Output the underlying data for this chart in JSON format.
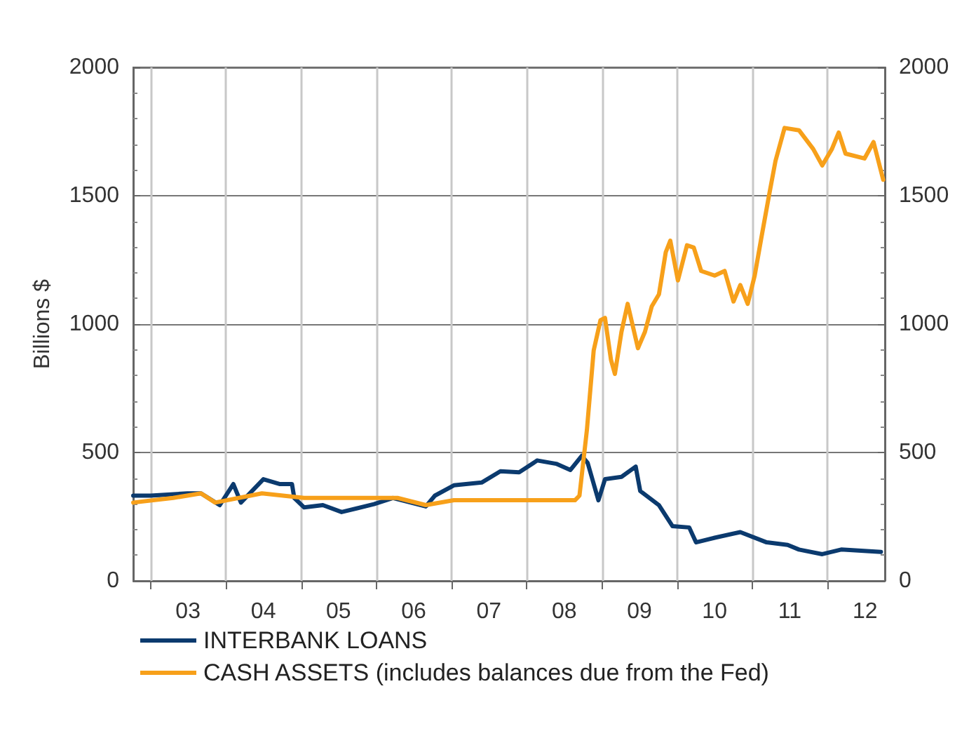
{
  "chart_data": {
    "type": "line",
    "ylabel": "Billions $",
    "xlim": [
      "2002-10-08",
      "2012-10-05"
    ],
    "xticks": [
      {
        "value": "2003",
        "label": null
      },
      {
        "value": "2003-07",
        "label": "03"
      },
      {
        "value": "2004",
        "label": null
      },
      {
        "value": "2004-07",
        "label": "04"
      },
      {
        "value": "2005",
        "label": null
      },
      {
        "value": "2005-07",
        "label": "05"
      },
      {
        "value": "2006",
        "label": null
      },
      {
        "value": "2006-07",
        "label": "06"
      },
      {
        "value": "2007",
        "label": null
      },
      {
        "value": "2007-07",
        "label": "07"
      },
      {
        "value": "2008",
        "label": null
      },
      {
        "value": "2008-07",
        "label": "08"
      },
      {
        "value": "2009",
        "label": null
      },
      {
        "value": "2009-07",
        "label": "09"
      },
      {
        "value": "2010",
        "label": null
      },
      {
        "value": "2010-07",
        "label": "10"
      },
      {
        "value": "2011",
        "label": null
      },
      {
        "value": "2011-07",
        "label": "11"
      },
      {
        "value": "2012",
        "label": null
      },
      {
        "value": "2012-07",
        "label": "12"
      }
    ],
    "ylim": [
      0,
      2000
    ],
    "yticks": [
      0,
      500,
      1000,
      1500,
      2000
    ],
    "y2lim": [
      0,
      2000
    ],
    "y2ticks": [
      0,
      500,
      1000,
      1500,
      2000
    ],
    "grid": true,
    "legend": "bottom",
    "marker": "none",
    "line_style": "solid",
    "series": [
      {
        "name": "INTERBANK LOANS",
        "color": "#0b3a6e",
        "x": [
          "2002-10-08",
          "2003-01-01",
          "2003-06-28",
          "2003-09-02",
          "2003-12-02",
          "2004-02-06",
          "2004-03-14",
          "2004-07-01",
          "2004-09-20",
          "2004-11-17",
          "2004-11-28",
          "2005-01-15",
          "2005-04-16",
          "2005-07-16",
          "2005-12-20",
          "2006-03-22",
          "2006-08-29",
          "2006-10-12",
          "2007-01-12",
          "2007-05-27",
          "2007-08-26",
          "2007-11-25",
          "2008-02-21",
          "2008-05-23",
          "2008-07-31",
          "2008-09-24",
          "2008-10-23",
          "2008-12-14",
          "2009-01-15",
          "2009-04-05",
          "2009-06-13",
          "2009-07-05",
          "2009-10-04",
          "2009-12-09",
          "2010-02-28",
          "2010-04-02",
          "2010-07-02",
          "2010-11-03",
          "2011-03-11",
          "2011-06-21",
          "2011-08-15",
          "2011-12-06",
          "2012-03-07",
          "2012-09-16"
        ],
        "values": [
          332,
          332,
          341,
          341,
          295,
          377,
          305,
          396,
          377,
          377,
          323,
          286,
          295,
          268,
          299,
          323,
          290,
          332,
          372,
          383,
          427,
          423,
          469,
          456,
          432,
          487,
          459,
          314,
          396,
          405,
          445,
          350,
          295,
          213,
          208,
          150,
          168,
          190,
          150,
          140,
          122,
          104,
          122,
          113
        ]
      },
      {
        "name": "CASH ASSETS (includes balances due from the Fed)",
        "color": "#f7a01a",
        "x": [
          "2002-10-08",
          "2003-04-20",
          "2003-09-02",
          "2003-11-10",
          "2004-06-24",
          "2005-01-15",
          "2005-08-29",
          "2006-04-13",
          "2006-08-29",
          "2007-01-12",
          "2007-11-25",
          "2008-08-22",
          "2008-09-13",
          "2008-10-19",
          "2008-11-21",
          "2008-12-24",
          "2009-01-15",
          "2009-02-13",
          "2009-03-04",
          "2009-04-05",
          "2009-05-05",
          "2009-06-24",
          "2009-07-28",
          "2009-08-30",
          "2009-10-04",
          "2009-11-06",
          "2009-11-28",
          "2010-01-04",
          "2010-02-17",
          "2010-03-22",
          "2010-04-27",
          "2010-07-02",
          "2010-08-19",
          "2010-10-01",
          "2010-11-03",
          "2010-12-09",
          "2011-01-12",
          "2011-02-13",
          "2011-03-22",
          "2011-04-23",
          "2011-06-06",
          "2011-08-15",
          "2011-10-23",
          "2011-12-06",
          "2012-01-22",
          "2012-02-24",
          "2012-03-28",
          "2012-06-28",
          "2012-08-11",
          "2012-09-27"
        ],
        "values": [
          305,
          323,
          341,
          305,
          341,
          323,
          323,
          323,
          295,
          314,
          314,
          314,
          332,
          587,
          897,
          1015,
          1024,
          861,
          806,
          970,
          1079,
          906,
          970,
          1069,
          1116,
          1280,
          1325,
          1170,
          1307,
          1298,
          1207,
          1189,
          1207,
          1088,
          1152,
          1079,
          1189,
          1335,
          1499,
          1636,
          1764,
          1755,
          1682,
          1618,
          1682,
          1746,
          1664,
          1645,
          1709,
          1562
        ]
      }
    ]
  }
}
